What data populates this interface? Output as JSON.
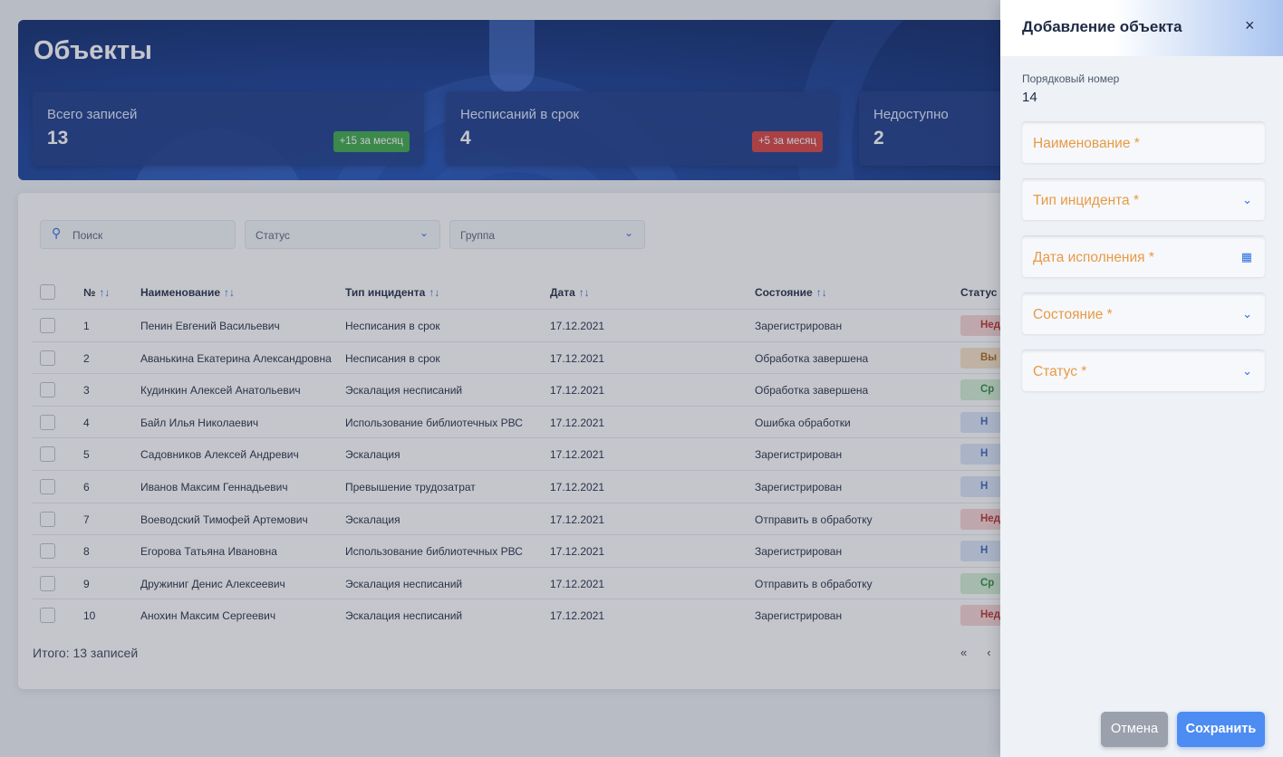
{
  "page": {
    "title": "Объекты"
  },
  "stats": [
    {
      "label": "Всего записей",
      "value": "13",
      "badge": "+15 за месяц",
      "badge_color": "#3da84a"
    },
    {
      "label": "Несписаний в срок",
      "value": "4",
      "badge": "+5 за месяц",
      "badge_color": "#d9413f"
    },
    {
      "label": "Недоступно",
      "value": "2"
    }
  ],
  "filters": {
    "search_placeholder": "Поиск",
    "status_placeholder": "Статус",
    "group_placeholder": "Группа"
  },
  "table": {
    "columns": [
      "№",
      "Наименование",
      "Тип инцидента",
      "Дата",
      "Состояние",
      "Статус"
    ],
    "sort_icon": "↑↓",
    "rows": [
      {
        "num": "1",
        "name": "Пенин Евгений Васильевич",
        "type": "Несписания в срок",
        "date": "17.12.2021",
        "state": "Зарегистрирован",
        "status_visible": "Нед",
        "status_color": "red"
      },
      {
        "num": "2",
        "name": "Аванькина Екатерина Александровна",
        "type": "Несписания в срок",
        "date": "17.12.2021",
        "state": "Обработка завершена",
        "status_visible": "Вы",
        "status_color": "orange"
      },
      {
        "num": "3",
        "name": "Кудинкин Алексей Анатольевич",
        "type": "Эскалация несписаний",
        "date": "17.12.2021",
        "state": "Обработка завершена",
        "status_visible": "Ср",
        "status_color": "green"
      },
      {
        "num": "4",
        "name": "Байл Илья Николаевич",
        "type": "Использование библиотечных РВС",
        "date": "17.12.2021",
        "state": "Ошибка обработки",
        "status_visible": "Н",
        "status_color": "blue"
      },
      {
        "num": "5",
        "name": "Садовников Алексей Андревич",
        "type": "Эскалация",
        "date": "17.12.2021",
        "state": "Зарегистрирован",
        "status_visible": "Н",
        "status_color": "blue"
      },
      {
        "num": "6",
        "name": "Иванов Максим Геннадьевич",
        "type": "Превышение трудозатрат",
        "date": "17.12.2021",
        "state": "Зарегистрирован",
        "status_visible": "Н",
        "status_color": "blue"
      },
      {
        "num": "7",
        "name": "Воеводский Тимофей Артемович",
        "type": "Эскалация",
        "date": "17.12.2021",
        "state": "Отправить в обработку",
        "status_visible": "Нед",
        "status_color": "red"
      },
      {
        "num": "8",
        "name": "Егорова Татьяна Ивановна",
        "type": "Использование библиотечных РВС",
        "date": "17.12.2021",
        "state": "Зарегистрирован",
        "status_visible": "Н",
        "status_color": "blue"
      },
      {
        "num": "9",
        "name": "Дружиниг Денис Алексеевич",
        "type": "Эскалация несписаний",
        "date": "17.12.2021",
        "state": "Отправить в обработку",
        "status_visible": "Ср",
        "status_color": "green"
      },
      {
        "num": "10",
        "name": "Анохин Максим Сергеевич",
        "type": "Эскалация несписаний",
        "date": "17.12.2021",
        "state": "Зарегистрирован",
        "status_visible": "Нед",
        "status_color": "red"
      }
    ],
    "footer_total": "Итого: 13 записей",
    "pager_first": "«",
    "pager_prev": "‹"
  },
  "drawer": {
    "title": "Добавление объекта",
    "close_icon": "×",
    "seq_label": "Порядковый номер",
    "seq_value": "14",
    "fields": [
      {
        "label": "Наименование *",
        "icon": ""
      },
      {
        "label": "Тип инцидента *",
        "icon": "chevron-down-icon"
      },
      {
        "label": "Дата исполнения *",
        "icon": "calendar-icon"
      },
      {
        "label": "Состояние *",
        "icon": "chevron-down-icon"
      },
      {
        "label": "Статус *",
        "icon": "chevron-down-icon"
      }
    ],
    "cancel_label": "Отмена",
    "save_label": "Сохранить"
  },
  "colors": {
    "accent": "#2f6fe0",
    "required_label": "#e79a46",
    "hero_bg": "#173d96"
  }
}
